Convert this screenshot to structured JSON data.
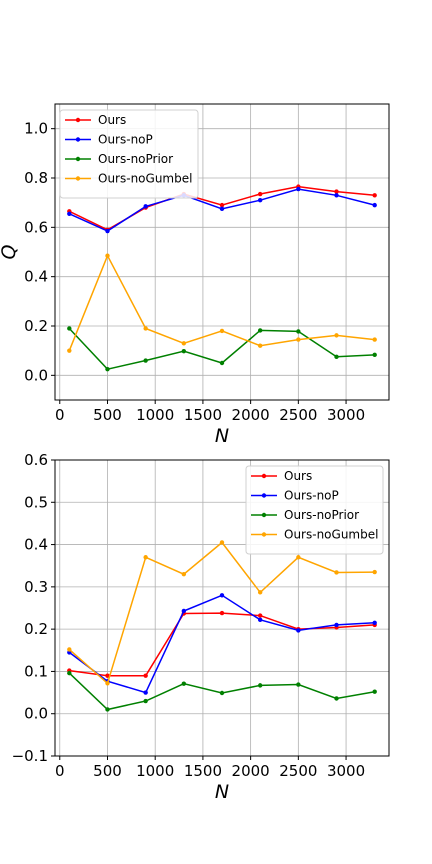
{
  "chart_data": [
    {
      "type": "line",
      "xlabel": "N",
      "ylabel": "Q",
      "xlim": [
        -50,
        3450
      ],
      "ylim": [
        -0.1,
        1.1
      ],
      "xticks": [
        0,
        500,
        1000,
        1500,
        2000,
        2500,
        3000
      ],
      "yticks": [
        0.0,
        0.2,
        0.4,
        0.6,
        0.8,
        1.0
      ],
      "grid": true,
      "legend": "top-left",
      "x": [
        100,
        500,
        900,
        1300,
        1700,
        2100,
        2500,
        2900,
        3300
      ],
      "series": [
        {
          "name": "Ours",
          "color": "#ff0000",
          "values": [
            0.665,
            0.59,
            0.68,
            0.735,
            0.69,
            0.735,
            0.765,
            0.745,
            0.73
          ]
        },
        {
          "name": "Ours-noP",
          "color": "#0000ff",
          "values": [
            0.655,
            0.585,
            0.685,
            0.73,
            0.675,
            0.71,
            0.755,
            0.73,
            0.69
          ]
        },
        {
          "name": "Ours-noPrior",
          "color": "#008000",
          "values": [
            0.19,
            0.025,
            0.06,
            0.098,
            0.05,
            0.182,
            0.178,
            0.075,
            0.083
          ]
        },
        {
          "name": "Ours-noGumbel",
          "color": "#ffa500",
          "values": [
            0.1,
            0.485,
            0.19,
            0.13,
            0.18,
            0.12,
            0.145,
            0.162,
            0.145
          ]
        }
      ]
    },
    {
      "type": "line",
      "xlabel": "N",
      "ylabel": "",
      "xlim": [
        -50,
        3450
      ],
      "ylim": [
        -0.1,
        0.6
      ],
      "xticks": [
        0,
        500,
        1000,
        1500,
        2000,
        2500,
        3000
      ],
      "yticks": [
        -0.1,
        0.0,
        0.1,
        0.2,
        0.3,
        0.4,
        0.5,
        0.6
      ],
      "grid": true,
      "legend": "top-right",
      "x": [
        100,
        500,
        900,
        1300,
        1700,
        2100,
        2500,
        2900,
        3300
      ],
      "series": [
        {
          "name": "Ours",
          "color": "#ff0000",
          "values": [
            0.102,
            0.09,
            0.09,
            0.237,
            0.238,
            0.232,
            0.2,
            0.204,
            0.21
          ]
        },
        {
          "name": "Ours-noP",
          "color": "#0000ff",
          "values": [
            0.145,
            0.077,
            0.05,
            0.243,
            0.28,
            0.222,
            0.197,
            0.21,
            0.215
          ]
        },
        {
          "name": "Ours-noPrior",
          "color": "#008000",
          "values": [
            0.096,
            0.01,
            0.03,
            0.071,
            0.049,
            0.067,
            0.069,
            0.036,
            0.052
          ]
        },
        {
          "name": "Ours-noGumbel",
          "color": "#ffa500",
          "values": [
            0.152,
            0.072,
            0.37,
            0.33,
            0.405,
            0.287,
            0.37,
            0.334,
            0.335
          ]
        }
      ]
    }
  ]
}
